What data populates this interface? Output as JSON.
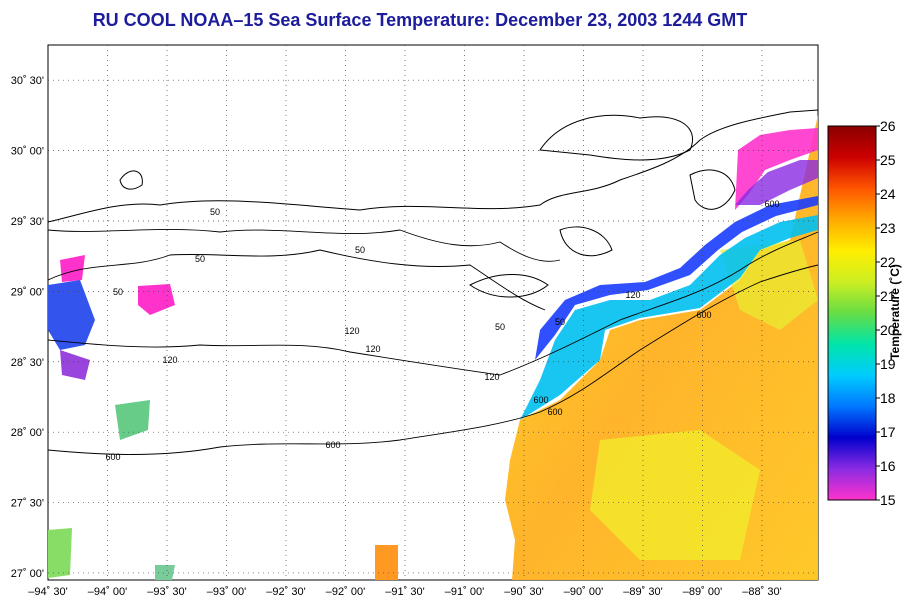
{
  "title": "RU COOL  NOAA–15  Sea Surface Temperature:  December 23, 2003 1244 GMT",
  "lat_ticks": [
    "30˚ 30'",
    "30˚ 00'",
    "29˚ 30'",
    "29˚ 00'",
    "28˚ 30'",
    "28˚ 00'",
    "27˚ 30'",
    "27˚ 00'"
  ],
  "lon_ticks": [
    "–94˚ 30'",
    "–94˚ 00'",
    "–93˚ 30'",
    "–93˚ 00'",
    "–92˚ 30'",
    "–92˚ 00'",
    "–91˚ 30'",
    "–91˚ 00'",
    "–90˚ 30'",
    "–90˚ 00'",
    "–89˚ 30'",
    "–89˚ 00'",
    "–88˚ 30'"
  ],
  "colorbar": {
    "title": "Temperature (˚C)",
    "min": 15,
    "max": 26,
    "tick_labels": [
      "26",
      "25",
      "24",
      "23",
      "22",
      "21",
      "20",
      "19",
      "18",
      "17",
      "16",
      "15"
    ],
    "colors": [
      "#ff33cc",
      "#8a2be2",
      "#0000cd",
      "#0077ff",
      "#00ccff",
      "#00e5aa",
      "#66dd44",
      "#ccee22",
      "#ffee00",
      "#ffaa00",
      "#ff5500",
      "#cc0000",
      "#8b0000"
    ]
  },
  "contour_labels": [
    "50",
    "50",
    "50",
    "50",
    "50",
    "50",
    "120",
    "120",
    "120",
    "120",
    "120",
    "600",
    "600",
    "600",
    "600",
    "600",
    "600"
  ]
}
